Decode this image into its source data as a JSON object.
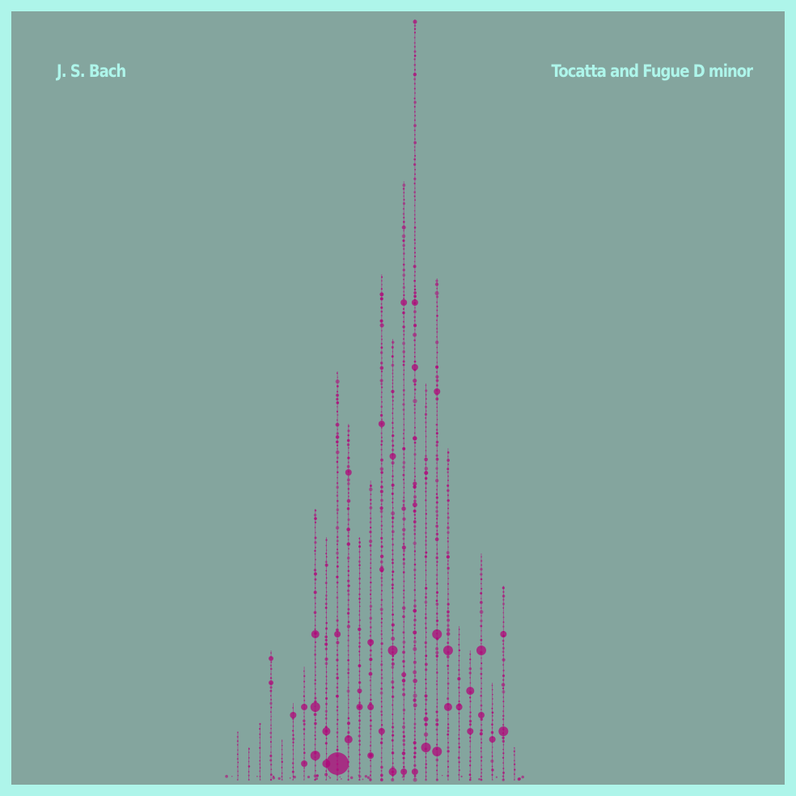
{
  "artist": "J. S. Bach",
  "title": "Tocatta and Fugue D minor",
  "colors": {
    "frame": "#aef5ea",
    "background": "#84a59e",
    "dots": "#b0087a",
    "text": "#aef5ea"
  },
  "visualization": {
    "kind": "dot-column note histogram",
    "columns": [
      {
        "h": 60,
        "big": [],
        "pm": 0.2
      },
      {
        "h": 40,
        "big": [],
        "pm": 0.2
      },
      {
        "h": 70,
        "big": [],
        "pm": 0.3
      },
      {
        "h": 160,
        "big": [
          {
            "o": 150,
            "r": 3
          },
          {
            "o": 120,
            "r": 3
          }
        ],
        "pm": 0.4
      },
      {
        "h": 50,
        "big": [],
        "pm": 0.2
      },
      {
        "h": 95,
        "big": [
          {
            "o": 80,
            "r": 4
          }
        ],
        "pm": 0.4
      },
      {
        "h": 140,
        "big": [
          {
            "o": 90,
            "r": 4
          },
          {
            "o": 20,
            "r": 4
          }
        ],
        "pm": 0.4
      },
      {
        "h": 335,
        "big": [
          {
            "o": 180,
            "r": 5
          },
          {
            "o": 90,
            "r": 6
          },
          {
            "o": 30,
            "r": 6
          }
        ],
        "pm": 0.6
      },
      {
        "h": 300,
        "big": [
          {
            "o": 60,
            "r": 5
          },
          {
            "o": 20,
            "r": 5
          }
        ],
        "pm": 0.6
      },
      {
        "h": 505,
        "big": [
          {
            "o": 180,
            "r": 4
          },
          {
            "o": 20,
            "r": 14
          }
        ],
        "pm": 0.7
      },
      {
        "h": 440,
        "big": [
          {
            "o": 380,
            "r": 4
          },
          {
            "o": 50,
            "r": 5
          }
        ],
        "pm": 0.7
      },
      {
        "h": 300,
        "big": [
          {
            "o": 90,
            "r": 4
          },
          {
            "o": 110,
            "r": 3
          }
        ],
        "pm": 0.6
      },
      {
        "h": 370,
        "big": [
          {
            "o": 170,
            "r": 4
          },
          {
            "o": 90,
            "r": 4
          },
          {
            "o": 30,
            "r": 4
          }
        ],
        "pm": 0.7
      },
      {
        "h": 625,
        "big": [
          {
            "o": 440,
            "r": 4
          },
          {
            "o": 260,
            "r": 3
          },
          {
            "o": 60,
            "r": 4
          }
        ],
        "pm": 0.7
      },
      {
        "h": 545,
        "big": [
          {
            "o": 400,
            "r": 4
          },
          {
            "o": 160,
            "r": 6
          },
          {
            "o": 10,
            "r": 5
          }
        ],
        "pm": 0.7
      },
      {
        "h": 740,
        "big": [
          {
            "o": 590,
            "r": 4
          },
          {
            "o": 130,
            "r": 3
          },
          {
            "o": 10,
            "r": 4
          }
        ],
        "pm": 0.75
      },
      {
        "h": 940,
        "big": [
          {
            "o": 590,
            "r": 4
          },
          {
            "o": 510,
            "r": 4
          },
          {
            "o": 340,
            "r": 3
          },
          {
            "o": 10,
            "r": 4
          }
        ],
        "pm": 0.8
      },
      {
        "h": 490,
        "big": [
          {
            "o": 75,
            "r": 3
          },
          {
            "o": 40,
            "r": 6
          }
        ],
        "pm": 0.7
      },
      {
        "h": 620,
        "big": [
          {
            "o": 480,
            "r": 4
          },
          {
            "o": 180,
            "r": 6
          },
          {
            "o": 35,
            "r": 6
          }
        ],
        "pm": 0.7
      },
      {
        "h": 410,
        "big": [
          {
            "o": 160,
            "r": 6
          },
          {
            "o": 90,
            "r": 5
          }
        ],
        "pm": 0.6
      },
      {
        "h": 190,
        "big": [
          {
            "o": 90,
            "r": 4
          }
        ],
        "pm": 0.5
      },
      {
        "h": 160,
        "big": [
          {
            "o": 110,
            "r": 5
          },
          {
            "o": 60,
            "r": 4
          }
        ],
        "pm": 0.5
      },
      {
        "h": 280,
        "big": [
          {
            "o": 160,
            "r": 6
          },
          {
            "o": 80,
            "r": 4
          }
        ],
        "pm": 0.6
      },
      {
        "h": 120,
        "big": [
          {
            "o": 50,
            "r": 4
          }
        ],
        "pm": 0.5
      },
      {
        "h": 240,
        "big": [
          {
            "o": 180,
            "r": 4
          },
          {
            "o": 60,
            "r": 6
          }
        ],
        "pm": 0.6
      },
      {
        "h": 40,
        "big": [],
        "pm": 0.3
      }
    ]
  }
}
